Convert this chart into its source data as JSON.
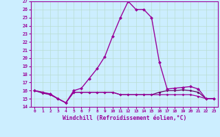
{
  "xlabel": "Windchill (Refroidissement éolien,°C)",
  "background_color": "#cceeff",
  "grid_color": "#b8ddd0",
  "line_color": "#990099",
  "line_color2": "#660066",
  "x_hours": [
    0,
    1,
    2,
    3,
    4,
    5,
    6,
    7,
    8,
    9,
    10,
    11,
    12,
    13,
    14,
    15,
    16,
    17,
    18,
    19,
    20,
    21,
    22,
    23
  ],
  "series1": [
    16.0,
    15.8,
    15.6,
    15.0,
    14.5,
    16.0,
    16.3,
    17.5,
    18.7,
    20.2,
    22.7,
    25.0,
    27.0,
    26.0,
    26.0,
    25.0,
    19.5,
    16.2,
    16.3,
    16.4,
    16.5,
    16.2,
    15.0,
    15.0
  ],
  "series2": [
    16.0,
    15.8,
    15.5,
    15.0,
    14.5,
    15.8,
    15.8,
    15.8,
    15.8,
    15.8,
    15.8,
    15.5,
    15.5,
    15.5,
    15.5,
    15.5,
    15.5,
    15.5,
    15.5,
    15.5,
    15.5,
    15.3,
    15.0,
    15.0
  ],
  "series3": [
    16.0,
    15.7,
    15.5,
    15.0,
    14.5,
    15.8,
    15.8,
    15.8,
    15.8,
    15.8,
    15.8,
    15.5,
    15.5,
    15.5,
    15.5,
    15.5,
    15.8,
    16.0,
    16.0,
    16.1,
    16.0,
    15.8,
    15.0,
    15.0
  ],
  "ylim": [
    14,
    27
  ],
  "yticks": [
    14,
    15,
    16,
    17,
    18,
    19,
    20,
    21,
    22,
    23,
    24,
    25,
    26,
    27
  ],
  "xticks": [
    0,
    1,
    2,
    3,
    4,
    5,
    6,
    7,
    8,
    9,
    10,
    11,
    12,
    13,
    14,
    15,
    16,
    17,
    18,
    19,
    20,
    21,
    22,
    23
  ]
}
